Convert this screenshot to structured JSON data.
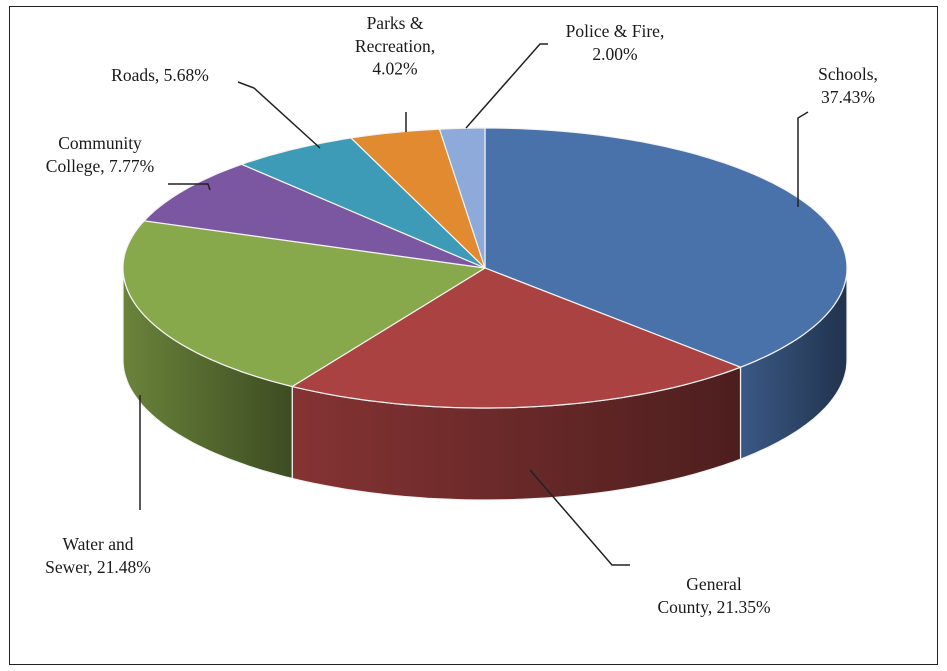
{
  "chart_data": {
    "type": "pie",
    "title": "",
    "slices": [
      {
        "label": "Schools",
        "label_lines": [
          "Schools,",
          "37.43%"
        ],
        "value": 37.43,
        "color": "#4a72aa"
      },
      {
        "label": "General County",
        "label_lines": [
          "General",
          "County, 21.35%"
        ],
        "value": 21.35,
        "color": "#ab4242"
      },
      {
        "label": "Water and Sewer",
        "label_lines": [
          "Water and",
          "Sewer, 21.48%"
        ],
        "value": 21.48,
        "color": "#88a84c"
      },
      {
        "label": "Community College",
        "label_lines": [
          "Community",
          "College, 7.77%"
        ],
        "value": 7.77,
        "color": "#7a57a0"
      },
      {
        "label": "Roads",
        "label_lines": [
          "Roads, 5.68%"
        ],
        "value": 5.68,
        "color": "#3d9bb8"
      },
      {
        "label": "Parks & Recreation",
        "label_lines": [
          "Parks &",
          "Recreation,",
          "4.02%"
        ],
        "value": 4.02,
        "color": "#e28a30"
      },
      {
        "label": "Police & Fire",
        "label_lines": [
          "Police & Fire,",
          "2.00%"
        ],
        "value": 2.0,
        "color": "#8eaadb"
      }
    ],
    "style": "3d-tilted",
    "legend": "none",
    "data_labels": "outside-with-leader-lines"
  }
}
